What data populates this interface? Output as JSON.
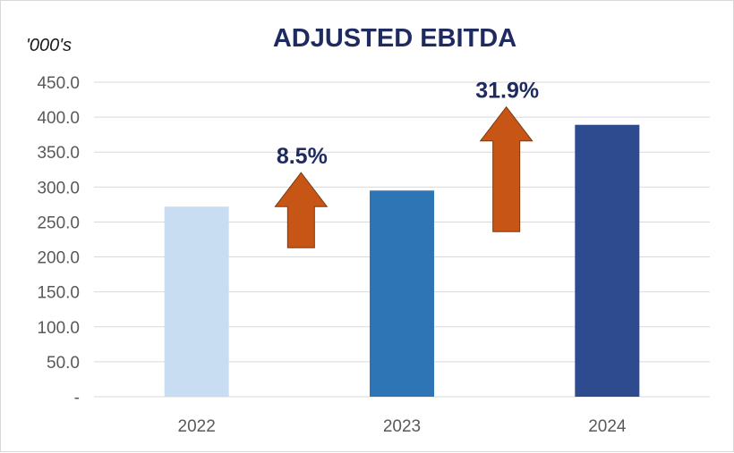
{
  "chart_data": {
    "type": "bar",
    "title": "ADJUSTED EBITDA",
    "unit_label": "'000's",
    "categories": [
      "2022",
      "2023",
      "2024"
    ],
    "values": [
      272,
      295,
      389
    ],
    "bar_colors": [
      "#c9ddf2",
      "#2e75b6",
      "#2f4b8f"
    ],
    "ylim": [
      0,
      450
    ],
    "yticks": [
      0,
      50,
      100,
      150,
      200,
      250,
      300,
      350,
      400,
      450
    ],
    "ytick_labels": [
      "-",
      "50.0",
      "100.0",
      "150.0",
      "200.0",
      "250.0",
      "300.0",
      "350.0",
      "400.0",
      "450.0"
    ],
    "grid": true,
    "xlabel": "",
    "ylabel": "",
    "annotations": [
      {
        "text": "8.5%",
        "between": [
          "2022",
          "2023"
        ],
        "arrow": "up",
        "arrow_color": "#c65516"
      },
      {
        "text": "31.9%",
        "between": [
          "2023",
          "2024"
        ],
        "arrow": "up",
        "arrow_color": "#c65516"
      }
    ]
  }
}
